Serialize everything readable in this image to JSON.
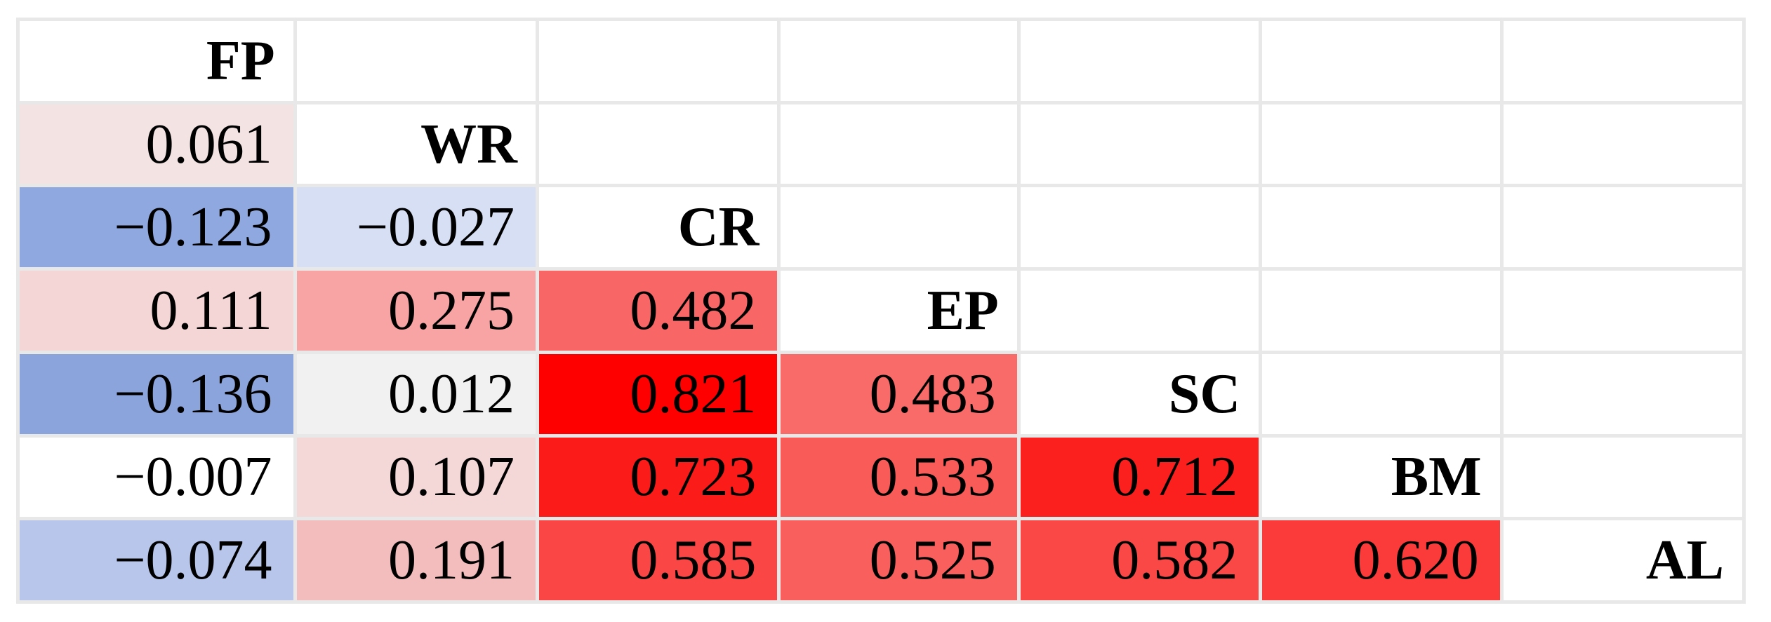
{
  "chart_data": {
    "type": "heatmap",
    "subtype": "correlation-matrix-lower-triangle",
    "title": "",
    "variables": [
      "FP",
      "WR",
      "CR",
      "EP",
      "SC",
      "BM",
      "AL"
    ],
    "color_scale": {
      "min_value": -0.136,
      "mid_value": 0,
      "max_value": 0.821,
      "min_color": "#8BA4DB",
      "mid_color": "#FFFFFF",
      "max_color": "#FE0000"
    },
    "grid_line_color": "#E8E8E8",
    "background_color": "#FFFFFF",
    "values_by_pair": {
      "WR-FP": 0.061,
      "CR-FP": -0.123,
      "CR-WR": -0.027,
      "EP-FP": 0.111,
      "EP-WR": 0.275,
      "EP-CR": 0.482,
      "SC-FP": -0.136,
      "SC-WR": 0.012,
      "SC-CR": 0.821,
      "SC-EP": 0.483,
      "BM-FP": -0.007,
      "BM-WR": 0.107,
      "BM-CR": 0.723,
      "BM-EP": 0.533,
      "BM-SC": 0.712,
      "AL-FP": -0.074,
      "AL-WR": 0.191,
      "AL-CR": 0.585,
      "AL-EP": 0.525,
      "AL-SC": 0.582,
      "AL-BM": 0.62
    },
    "rows": [
      [
        {
          "type": "label",
          "text": "FP"
        },
        {
          "type": "empty"
        },
        {
          "type": "empty"
        },
        {
          "type": "empty"
        },
        {
          "type": "empty"
        },
        {
          "type": "empty"
        },
        {
          "type": "empty"
        }
      ],
      [
        {
          "type": "value",
          "text": "0.061",
          "bg": "#F3E3E3"
        },
        {
          "type": "label",
          "text": "WR"
        },
        {
          "type": "empty"
        },
        {
          "type": "empty"
        },
        {
          "type": "empty"
        },
        {
          "type": "empty"
        },
        {
          "type": "empty"
        }
      ],
      [
        {
          "type": "value",
          "text": "−0.123",
          "bg": "#8FA8DF"
        },
        {
          "type": "value",
          "text": "−0.027",
          "bg": "#D6DFF3"
        },
        {
          "type": "label",
          "text": "CR"
        },
        {
          "type": "empty"
        },
        {
          "type": "empty"
        },
        {
          "type": "empty"
        },
        {
          "type": "empty"
        }
      ],
      [
        {
          "type": "value",
          "text": "0.111",
          "bg": "#F5D6D6"
        },
        {
          "type": "value",
          "text": "0.275",
          "bg": "#F8A4A4"
        },
        {
          "type": "value",
          "text": "0.482",
          "bg": "#F86765"
        },
        {
          "type": "label",
          "text": "EP"
        },
        {
          "type": "empty"
        },
        {
          "type": "empty"
        },
        {
          "type": "empty"
        }
      ],
      [
        {
          "type": "value",
          "text": "−0.136",
          "bg": "#8BA4DB"
        },
        {
          "type": "value",
          "text": "0.012",
          "bg": "#F1F1F2"
        },
        {
          "type": "value",
          "text": "0.821",
          "bg": "#FE0000"
        },
        {
          "type": "value",
          "text": "0.483",
          "bg": "#F86B68"
        },
        {
          "type": "label",
          "text": "SC"
        },
        {
          "type": "empty"
        },
        {
          "type": "empty"
        }
      ],
      [
        {
          "type": "value",
          "text": "−0.007",
          "bg": "#FFFFFF"
        },
        {
          "type": "value",
          "text": "0.107",
          "bg": "#F4D7D7"
        },
        {
          "type": "value",
          "text": "0.723",
          "bg": "#FB1B19"
        },
        {
          "type": "value",
          "text": "0.533",
          "bg": "#F85B58"
        },
        {
          "type": "value",
          "text": "0.712",
          "bg": "#FB201E"
        },
        {
          "type": "label",
          "text": "BM"
        },
        {
          "type": "empty"
        }
      ],
      [
        {
          "type": "value",
          "text": "−0.074",
          "bg": "#B7C6EA"
        },
        {
          "type": "value",
          "text": "0.191",
          "bg": "#F3BDBD"
        },
        {
          "type": "value",
          "text": "0.585",
          "bg": "#FA4745"
        },
        {
          "type": "value",
          "text": "0.525",
          "bg": "#F95F5C"
        },
        {
          "type": "value",
          "text": "0.582",
          "bg": "#FA4846"
        },
        {
          "type": "value",
          "text": "0.620",
          "bg": "#FB3B39"
        },
        {
          "type": "label",
          "text": "AL"
        }
      ]
    ]
  }
}
